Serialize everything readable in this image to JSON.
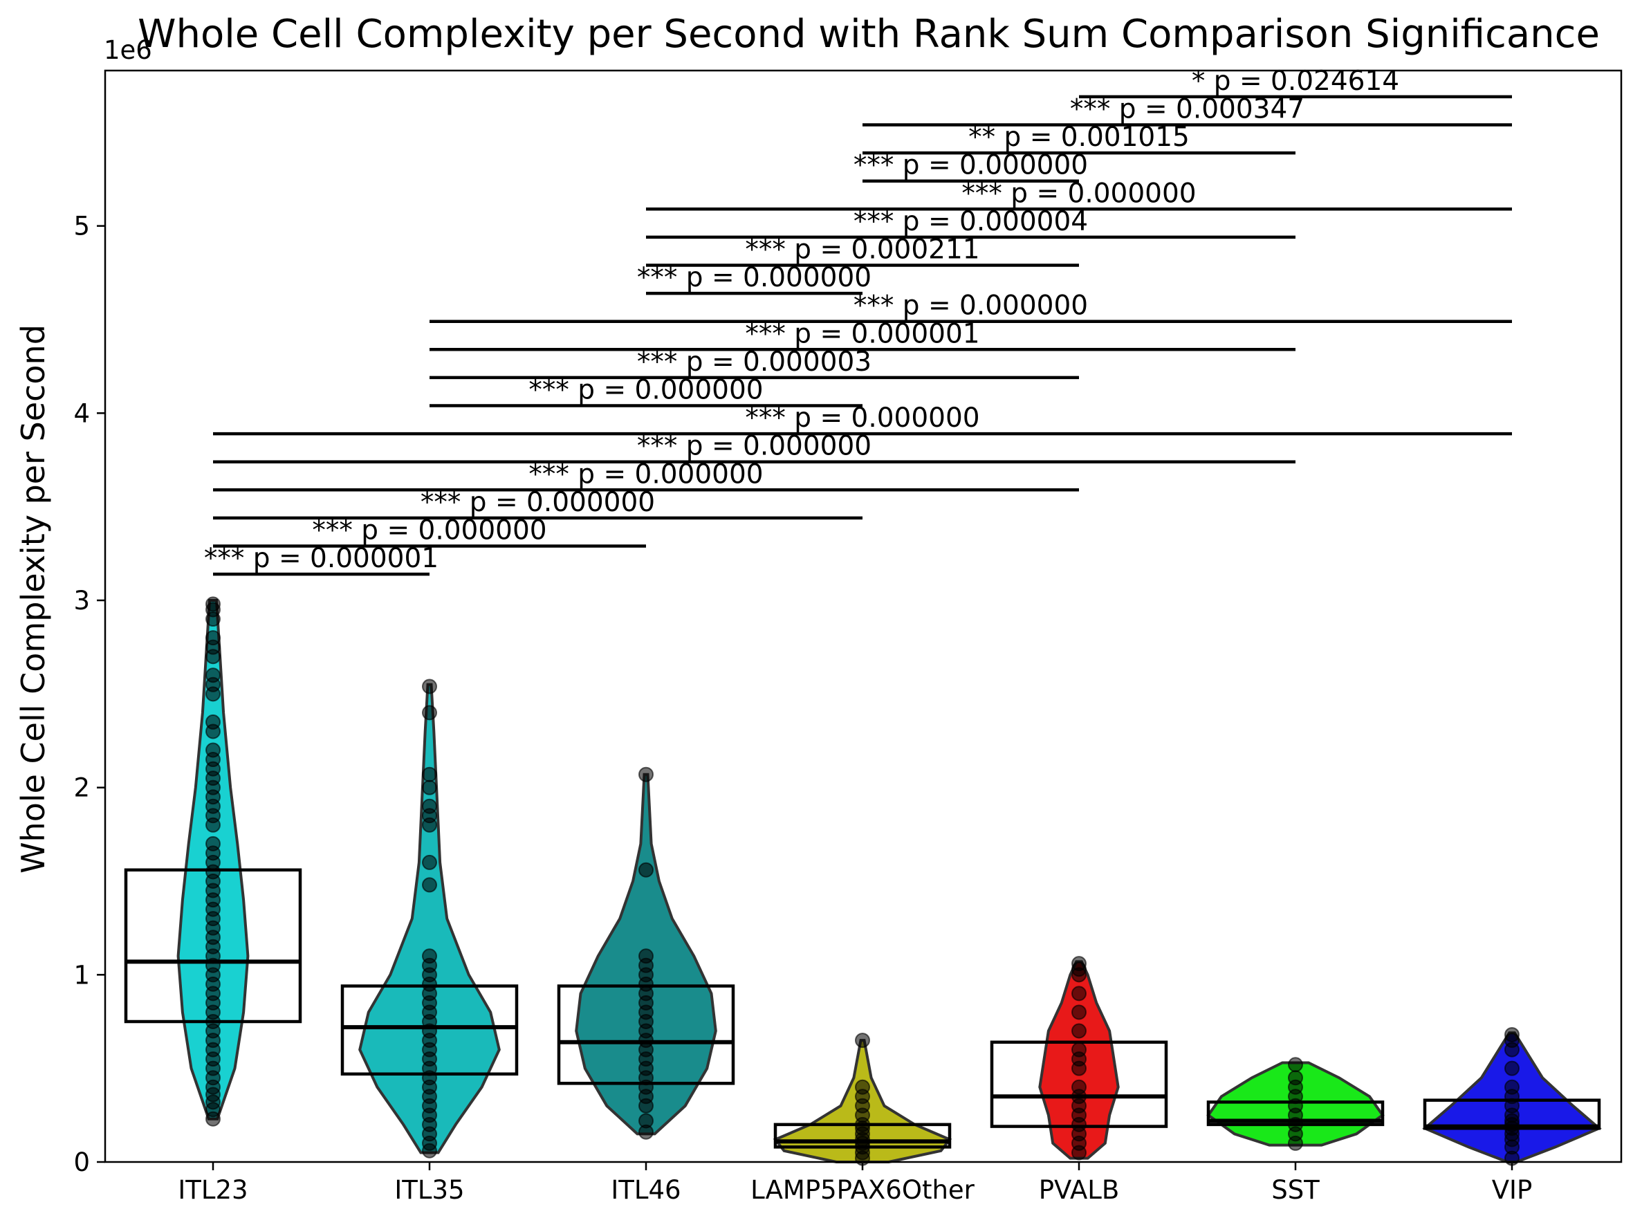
{
  "chart_data": {
    "type": "violin",
    "title": "Whole Cell Complexity per Second with Rank Sum Comparison Significance",
    "ylabel": "Whole Cell Complexity per Second",
    "xlabel": "",
    "y_offset_label": "1e6",
    "ylim": [
      0,
      5.83
    ],
    "yticks": [
      0,
      1,
      2,
      3,
      4,
      5
    ],
    "grid": false,
    "categories": [
      "ITL23",
      "ITL35",
      "ITL46",
      "LAMP5PAX6Other",
      "PVALB",
      "SST",
      "VIP"
    ],
    "colors": [
      "#00cccc",
      "#00b3b3",
      "#008080",
      "#b3b300",
      "#e60000",
      "#00e600",
      "#0000e6"
    ],
    "box_stats": [
      {
        "q1": 0.75,
        "median": 1.07,
        "q3": 1.56
      },
      {
        "q1": 0.47,
        "median": 0.72,
        "q3": 0.94
      },
      {
        "q1": 0.42,
        "median": 0.64,
        "q3": 0.94
      },
      {
        "q1": 0.08,
        "median": 0.11,
        "q3": 0.2
      },
      {
        "q1": 0.19,
        "median": 0.35,
        "q3": 0.64
      },
      {
        "q1": 0.2,
        "median": 0.22,
        "q3": 0.32
      },
      {
        "q1": 0.18,
        "median": 0.19,
        "q3": 0.33
      }
    ],
    "violin_profiles": [
      [
        [
          0.23,
          0.05
        ],
        [
          0.5,
          0.25
        ],
        [
          0.8,
          0.35
        ],
        [
          1.1,
          0.4
        ],
        [
          1.4,
          0.35
        ],
        [
          1.7,
          0.28
        ],
        [
          2.0,
          0.2
        ],
        [
          2.4,
          0.12
        ],
        [
          2.7,
          0.08
        ],
        [
          3.0,
          0.04
        ]
      ],
      [
        [
          0.05,
          0.1
        ],
        [
          0.2,
          0.3
        ],
        [
          0.4,
          0.6
        ],
        [
          0.6,
          0.8
        ],
        [
          0.8,
          0.7
        ],
        [
          1.0,
          0.45
        ],
        [
          1.3,
          0.2
        ],
        [
          1.6,
          0.12
        ],
        [
          2.0,
          0.08
        ],
        [
          2.3,
          0.05
        ],
        [
          2.55,
          0.02
        ]
      ],
      [
        [
          0.15,
          0.1
        ],
        [
          0.3,
          0.45
        ],
        [
          0.5,
          0.7
        ],
        [
          0.7,
          0.8
        ],
        [
          0.9,
          0.75
        ],
        [
          1.1,
          0.55
        ],
        [
          1.3,
          0.3
        ],
        [
          1.5,
          0.15
        ],
        [
          1.7,
          0.06
        ],
        [
          2.07,
          0.02
        ]
      ],
      [
        [
          0.0,
          0.3
        ],
        [
          0.06,
          0.9
        ],
        [
          0.12,
          1.0
        ],
        [
          0.2,
          0.6
        ],
        [
          0.3,
          0.25
        ],
        [
          0.45,
          0.1
        ],
        [
          0.65,
          0.02
        ]
      ],
      [
        [
          0.02,
          0.1
        ],
        [
          0.1,
          0.3
        ],
        [
          0.25,
          0.35
        ],
        [
          0.4,
          0.45
        ],
        [
          0.55,
          0.4
        ],
        [
          0.7,
          0.35
        ],
        [
          0.85,
          0.2
        ],
        [
          1.0,
          0.1
        ],
        [
          1.07,
          0.03
        ]
      ],
      [
        [
          0.09,
          0.3
        ],
        [
          0.15,
          0.7
        ],
        [
          0.25,
          1.0
        ],
        [
          0.35,
          0.85
        ],
        [
          0.45,
          0.5
        ],
        [
          0.53,
          0.15
        ]
      ],
      [
        [
          0.0,
          0.05
        ],
        [
          0.08,
          0.5
        ],
        [
          0.18,
          1.0
        ],
        [
          0.3,
          0.7
        ],
        [
          0.45,
          0.35
        ],
        [
          0.6,
          0.15
        ],
        [
          0.69,
          0.03
        ]
      ]
    ],
    "points": [
      [
        0.23,
        0.28,
        0.32,
        0.36,
        0.4,
        0.45,
        0.5,
        0.55,
        0.6,
        0.65,
        0.7,
        0.75,
        0.8,
        0.85,
        0.9,
        0.95,
        1.0,
        1.05,
        1.1,
        1.15,
        1.2,
        1.25,
        1.3,
        1.35,
        1.4,
        1.45,
        1.5,
        1.55,
        1.6,
        1.65,
        1.7,
        1.8,
        1.85,
        1.9,
        1.95,
        2.0,
        2.05,
        2.1,
        2.15,
        2.2,
        2.3,
        2.35,
        2.5,
        2.55,
        2.6,
        2.7,
        2.75,
        2.8,
        2.9,
        2.95,
        2.98
      ],
      [
        0.06,
        0.1,
        0.15,
        0.2,
        0.25,
        0.3,
        0.35,
        0.4,
        0.45,
        0.5,
        0.55,
        0.6,
        0.65,
        0.7,
        0.75,
        0.8,
        0.85,
        0.9,
        0.95,
        1.0,
        1.05,
        1.1,
        1.48,
        1.6,
        1.8,
        1.85,
        1.9,
        2.0,
        2.07,
        2.4,
        2.54
      ],
      [
        0.16,
        0.22,
        0.3,
        0.35,
        0.4,
        0.45,
        0.5,
        0.55,
        0.6,
        0.65,
        0.7,
        0.75,
        0.8,
        0.85,
        0.9,
        0.95,
        1.0,
        1.05,
        1.1,
        1.56,
        2.07
      ],
      [
        0.02,
        0.05,
        0.08,
        0.1,
        0.12,
        0.15,
        0.18,
        0.2,
        0.25,
        0.3,
        0.35,
        0.4,
        0.65
      ],
      [
        0.05,
        0.1,
        0.15,
        0.2,
        0.25,
        0.3,
        0.35,
        0.4,
        0.5,
        0.55,
        0.6,
        0.7,
        0.8,
        0.9,
        1.0,
        1.03,
        1.06
      ],
      [
        0.1,
        0.15,
        0.2,
        0.25,
        0.3,
        0.35,
        0.4,
        0.45,
        0.52
      ],
      [
        0.02,
        0.08,
        0.12,
        0.15,
        0.18,
        0.2,
        0.22,
        0.25,
        0.3,
        0.35,
        0.4,
        0.5,
        0.6,
        0.65,
        0.68
      ]
    ],
    "comparisons": [
      {
        "a": 0,
        "b": 1,
        "y": 3.14,
        "label": "*** p = 0.000001"
      },
      {
        "a": 0,
        "b": 2,
        "y": 3.29,
        "label": "*** p = 0.000000"
      },
      {
        "a": 0,
        "b": 3,
        "y": 3.44,
        "label": "*** p = 0.000000"
      },
      {
        "a": 0,
        "b": 4,
        "y": 3.59,
        "label": "*** p = 0.000000"
      },
      {
        "a": 0,
        "b": 5,
        "y": 3.74,
        "label": "*** p = 0.000000"
      },
      {
        "a": 0,
        "b": 6,
        "y": 3.89,
        "label": "*** p = 0.000000"
      },
      {
        "a": 1,
        "b": 3,
        "y": 4.04,
        "label": "*** p = 0.000000"
      },
      {
        "a": 1,
        "b": 4,
        "y": 4.19,
        "label": "*** p = 0.000003"
      },
      {
        "a": 1,
        "b": 5,
        "y": 4.34,
        "label": "*** p = 0.000001"
      },
      {
        "a": 1,
        "b": 6,
        "y": 4.49,
        "label": "*** p = 0.000000"
      },
      {
        "a": 2,
        "b": 3,
        "y": 4.64,
        "label": "*** p = 0.000000"
      },
      {
        "a": 2,
        "b": 4,
        "y": 4.79,
        "label": "*** p = 0.000211"
      },
      {
        "a": 2,
        "b": 5,
        "y": 4.94,
        "label": "*** p = 0.000004"
      },
      {
        "a": 2,
        "b": 6,
        "y": 5.09,
        "label": "*** p = 0.000000"
      },
      {
        "a": 3,
        "b": 4,
        "y": 5.24,
        "label": "*** p = 0.000000"
      },
      {
        "a": 3,
        "b": 5,
        "y": 5.39,
        "label": "** p = 0.001015"
      },
      {
        "a": 3,
        "b": 6,
        "y": 5.54,
        "label": "*** p = 0.000347"
      },
      {
        "a": 4,
        "b": 6,
        "y": 5.69,
        "label": "* p = 0.024614"
      }
    ]
  }
}
